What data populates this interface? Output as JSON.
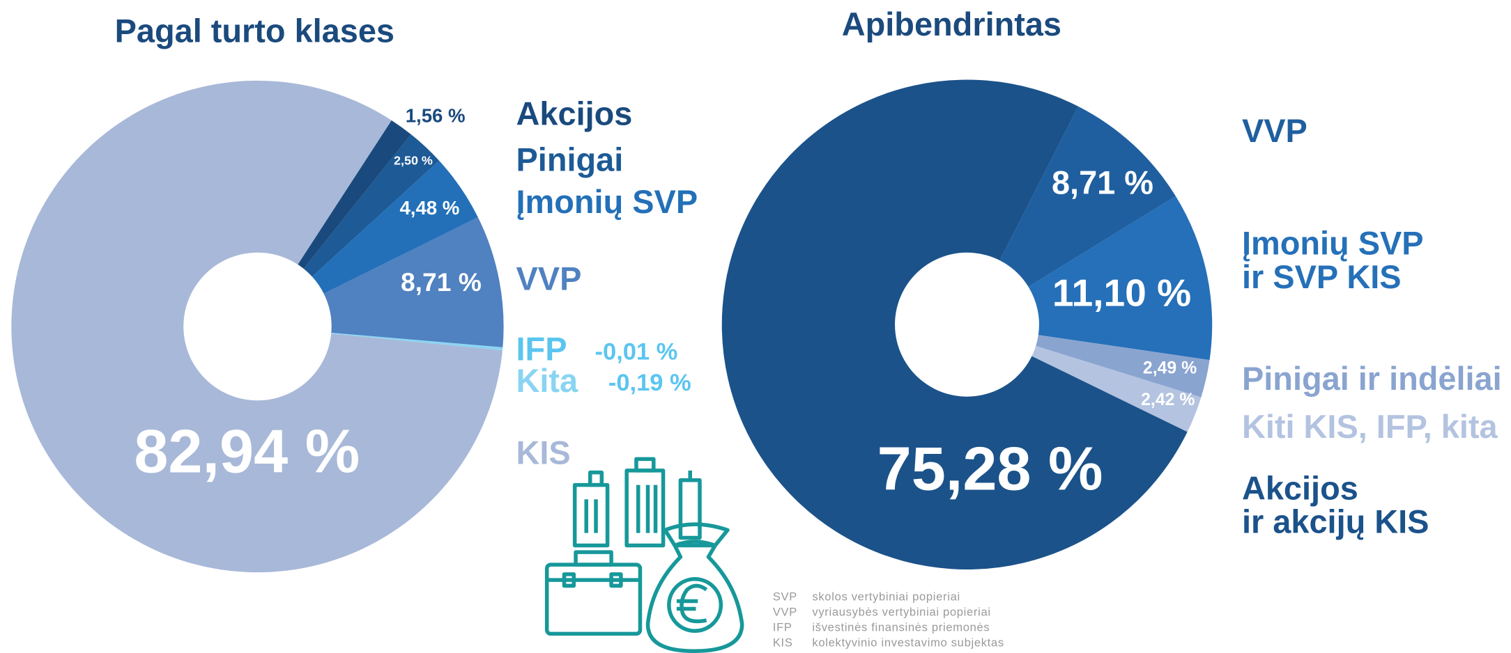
{
  "chart_data": [
    {
      "type": "pie",
      "title": "Pagal turto klases",
      "categories": [
        "Akcijos",
        "Pinigai",
        "Įmonių SVP",
        "VVP",
        "IFP",
        "Kita",
        "KIS"
      ],
      "values": [
        1.56,
        2.5,
        4.48,
        8.71,
        -0.01,
        -0.19,
        82.94
      ],
      "value_labels": [
        "1,56 %",
        "2,50 %",
        "4,48 %",
        "8,71 %",
        "-0,01 %",
        "-0,19 %",
        "82,94 %"
      ],
      "colors": [
        "#1a4a7d",
        "#1d5a96",
        "#2370b8",
        "#5081c0",
        "#5bc5f0",
        "#8ad4f2",
        "#a8b8d8"
      ]
    },
    {
      "type": "pie",
      "title": "Apibendrintas",
      "categories": [
        "VVP",
        "Įmonių SVP\nir SVP KIS",
        "Pinigai ir indėliai",
        "Kiti KIS, IFP, kita",
        "Akcijos\nir akcijų KIS"
      ],
      "values": [
        8.71,
        11.1,
        2.49,
        2.42,
        75.28
      ],
      "value_labels": [
        "8,71 %",
        "11,10 %",
        "2,49 %",
        "2,42 %",
        "75,28 %"
      ],
      "colors": [
        "#1f5fa0",
        "#2570b8",
        "#8aa4d0",
        "#b3c3e0",
        "#1b528a"
      ]
    }
  ],
  "glossary": [
    {
      "abbr": "SVP",
      "text": "skolos vertybiniai popieriai"
    },
    {
      "abbr": "VVP",
      "text": "vyriausybės vertybiniai popieriai"
    },
    {
      "abbr": "IFP",
      "text": "išvestinės finansinės priemonės"
    },
    {
      "abbr": "KIS",
      "text": "kolektyvinio investavimo subjektas"
    }
  ]
}
